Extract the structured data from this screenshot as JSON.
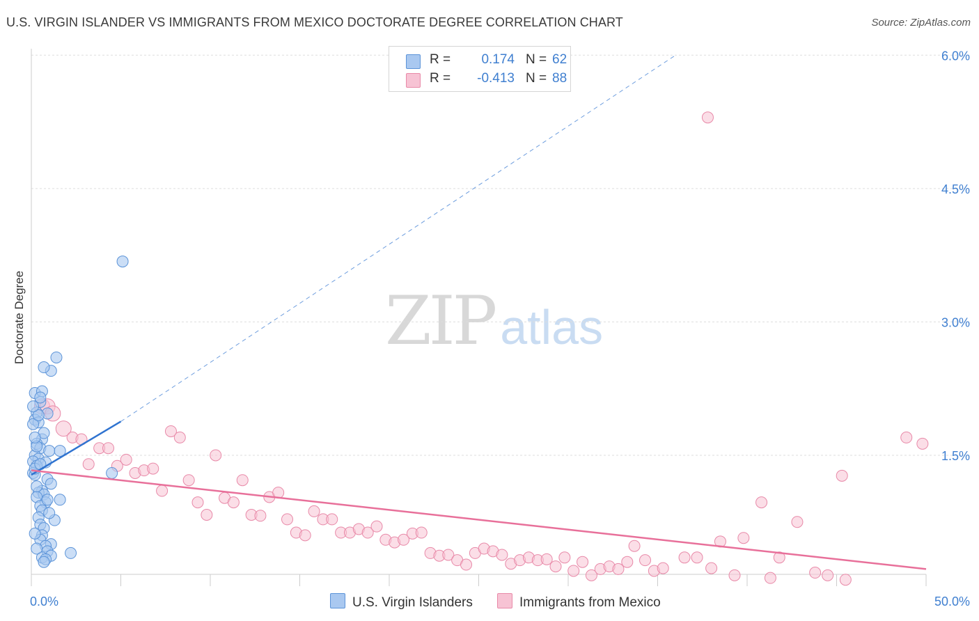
{
  "title": "U.S. VIRGIN ISLANDER VS IMMIGRANTS FROM MEXICO DOCTORATE DEGREE CORRELATION CHART",
  "source": "Source: ZipAtlas.com",
  "legend": {
    "rows": [
      {
        "r_label": "R =",
        "r_value": "0.174",
        "n_label": "N =",
        "n_value": "62"
      },
      {
        "r_label": "R =",
        "r_value": "-0.413",
        "n_label": "N =",
        "n_value": "88"
      }
    ]
  },
  "watermark": {
    "zip": "ZIP",
    "atlas": "atlas"
  },
  "colors": {
    "blue_fill": "#a9c8f0",
    "blue_stroke": "#5b93d8",
    "blue_line": "#2f73d0",
    "pink_fill": "#f7c3d4",
    "pink_stroke": "#e889a8",
    "pink_line": "#e8709a",
    "grid": "#dddddd",
    "tick_text": "#3f7fd0"
  },
  "chart_data": {
    "type": "scatter",
    "title": "U.S. VIRGIN ISLANDER VS IMMIGRANTS FROM MEXICO DOCTORATE DEGREE CORRELATION CHART",
    "xlabel": "",
    "ylabel": "Doctorate Degree",
    "xlim": [
      0,
      50
    ],
    "ylim": [
      0,
      6.2
    ],
    "x_tick_labels": [
      "0.0%",
      "50.0%"
    ],
    "y_ticks": [
      1.5,
      3.0,
      4.5,
      6.0
    ],
    "y_tick_labels": [
      "1.5%",
      "3.0%",
      "4.5%",
      "6.0%"
    ],
    "grid": true,
    "legend_position": "top-center",
    "series": [
      {
        "name": "U.S. Virgin Islanders",
        "r": 0.174,
        "n": 62,
        "trend": {
          "x": [
            0,
            5
          ],
          "y": [
            1.28,
            1.88
          ]
        },
        "trend_extension": {
          "x": [
            5,
            36
          ],
          "y": [
            1.88,
            6.0
          ]
        },
        "points": [
          [
            0.2,
            2.2
          ],
          [
            0.6,
            2.22
          ],
          [
            1.1,
            2.45
          ],
          [
            0.7,
            2.49
          ],
          [
            1.4,
            2.6
          ],
          [
            0.5,
            2.1
          ],
          [
            0.3,
            1.98
          ],
          [
            0.9,
            1.97
          ],
          [
            0.2,
            1.9
          ],
          [
            0.4,
            1.87
          ],
          [
            0.1,
            1.85
          ],
          [
            0.6,
            1.68
          ],
          [
            0.3,
            1.63
          ],
          [
            0.5,
            1.58
          ],
          [
            1.0,
            1.55
          ],
          [
            1.6,
            1.55
          ],
          [
            0.2,
            1.5
          ],
          [
            0.4,
            1.46
          ],
          [
            0.8,
            1.42
          ],
          [
            0.1,
            1.43
          ],
          [
            0.3,
            1.38
          ],
          [
            0.1,
            1.3
          ],
          [
            0.2,
            1.28
          ],
          [
            0.9,
            1.23
          ],
          [
            1.1,
            1.18
          ],
          [
            0.6,
            1.1
          ],
          [
            0.4,
            1.08
          ],
          [
            0.7,
            1.06
          ],
          [
            0.3,
            1.03
          ],
          [
            1.6,
            1.0
          ],
          [
            0.8,
            0.97
          ],
          [
            0.5,
            0.93
          ],
          [
            0.6,
            0.88
          ],
          [
            0.4,
            0.8
          ],
          [
            1.3,
            0.77
          ],
          [
            0.5,
            0.72
          ],
          [
            0.7,
            0.68
          ],
          [
            0.6,
            0.6
          ],
          [
            0.5,
            0.55
          ],
          [
            1.1,
            0.5
          ],
          [
            0.8,
            0.48
          ],
          [
            0.9,
            0.42
          ],
          [
            2.2,
            0.4
          ],
          [
            1.1,
            0.37
          ],
          [
            0.6,
            0.35
          ],
          [
            0.8,
            0.33
          ],
          [
            0.7,
            0.3
          ],
          [
            0.3,
            0.45
          ],
          [
            0.2,
            0.62
          ],
          [
            1.0,
            0.85
          ],
          [
            0.9,
            1.0
          ],
          [
            0.3,
            1.15
          ],
          [
            0.2,
            1.35
          ],
          [
            0.5,
            1.4
          ],
          [
            0.7,
            1.75
          ],
          [
            0.4,
            1.95
          ],
          [
            0.1,
            2.05
          ],
          [
            0.5,
            2.15
          ],
          [
            0.3,
            1.6
          ],
          [
            0.2,
            1.7
          ],
          [
            4.5,
            1.3
          ],
          [
            5.1,
            3.68
          ]
        ]
      },
      {
        "name": "Immigrants from Mexico",
        "r": -0.413,
        "n": 88,
        "trend": {
          "x": [
            0,
            50
          ],
          "y": [
            1.33,
            0.22
          ]
        },
        "points": [
          [
            0.6,
            2.05
          ],
          [
            0.9,
            2.05
          ],
          [
            1.2,
            1.97
          ],
          [
            1.8,
            1.8
          ],
          [
            2.3,
            1.7
          ],
          [
            2.8,
            1.68
          ],
          [
            3.2,
            1.4
          ],
          [
            3.8,
            1.58
          ],
          [
            4.3,
            1.58
          ],
          [
            4.8,
            1.38
          ],
          [
            5.3,
            1.45
          ],
          [
            5.8,
            1.3
          ],
          [
            6.3,
            1.33
          ],
          [
            6.8,
            1.35
          ],
          [
            7.3,
            1.1
          ],
          [
            7.8,
            1.77
          ],
          [
            8.3,
            1.7
          ],
          [
            8.8,
            1.22
          ],
          [
            9.3,
            0.97
          ],
          [
            9.8,
            0.83
          ],
          [
            10.3,
            1.5
          ],
          [
            10.8,
            1.02
          ],
          [
            11.3,
            0.97
          ],
          [
            11.8,
            1.22
          ],
          [
            12.3,
            0.83
          ],
          [
            12.8,
            0.82
          ],
          [
            13.3,
            1.03
          ],
          [
            13.8,
            1.08
          ],
          [
            14.3,
            0.78
          ],
          [
            14.8,
            0.63
          ],
          [
            15.3,
            0.6
          ],
          [
            15.8,
            0.87
          ],
          [
            16.3,
            0.78
          ],
          [
            16.8,
            0.78
          ],
          [
            17.3,
            0.63
          ],
          [
            17.8,
            0.63
          ],
          [
            18.3,
            0.67
          ],
          [
            18.8,
            0.63
          ],
          [
            19.3,
            0.7
          ],
          [
            19.8,
            0.55
          ],
          [
            20.3,
            0.52
          ],
          [
            20.8,
            0.55
          ],
          [
            21.3,
            0.62
          ],
          [
            21.8,
            0.63
          ],
          [
            22.3,
            0.4
          ],
          [
            22.8,
            0.37
          ],
          [
            23.3,
            0.38
          ],
          [
            23.8,
            0.32
          ],
          [
            24.3,
            0.27
          ],
          [
            24.8,
            0.4
          ],
          [
            25.3,
            0.45
          ],
          [
            25.8,
            0.42
          ],
          [
            26.3,
            0.38
          ],
          [
            26.8,
            0.28
          ],
          [
            27.3,
            0.32
          ],
          [
            27.8,
            0.35
          ],
          [
            28.3,
            0.32
          ],
          [
            28.8,
            0.33
          ],
          [
            29.3,
            0.25
          ],
          [
            29.8,
            0.35
          ],
          [
            30.3,
            0.2
          ],
          [
            30.8,
            0.3
          ],
          [
            31.3,
            0.15
          ],
          [
            31.8,
            0.22
          ],
          [
            32.3,
            0.25
          ],
          [
            32.8,
            0.22
          ],
          [
            33.3,
            0.3
          ],
          [
            33.7,
            0.48
          ],
          [
            34.3,
            0.32
          ],
          [
            34.8,
            0.2
          ],
          [
            35.3,
            0.23
          ],
          [
            36.5,
            0.35
          ],
          [
            37.2,
            0.35
          ],
          [
            38.0,
            0.23
          ],
          [
            38.5,
            0.53
          ],
          [
            39.3,
            0.15
          ],
          [
            39.8,
            0.57
          ],
          [
            40.8,
            0.97
          ],
          [
            41.3,
            0.12
          ],
          [
            41.8,
            0.35
          ],
          [
            42.8,
            0.75
          ],
          [
            43.8,
            0.18
          ],
          [
            44.5,
            0.15
          ],
          [
            45.3,
            1.27
          ],
          [
            45.5,
            0.1
          ],
          [
            48.9,
            1.7
          ],
          [
            49.8,
            1.63
          ],
          [
            37.8,
            5.3
          ]
        ]
      }
    ]
  },
  "bottom_legend": [
    "U.S. Virgin Islanders",
    "Immigrants from Mexico"
  ]
}
